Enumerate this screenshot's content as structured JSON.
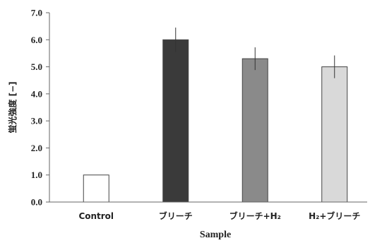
{
  "chart_data": {
    "type": "bar",
    "title": "",
    "xlabel": "Sample",
    "ylabel": "蛍光強度 [−]",
    "categories": [
      "Control",
      "ブリーチ",
      "ブリーチ+H₂",
      "H₂+ブリーチ"
    ],
    "values": [
      1.0,
      6.0,
      5.3,
      5.0
    ],
    "errors": [
      0,
      0.45,
      0.42,
      0.42
    ],
    "colors": [
      "#ffffff",
      "#3a3a3a",
      "#8a8a8a",
      "#d9d9d9"
    ],
    "ylim": [
      0.0,
      7.0
    ],
    "yticks": [
      "0.0",
      "1.0",
      "2.0",
      "3.0",
      "4.0",
      "5.0",
      "6.0",
      "7.0"
    ],
    "grid": false,
    "legend": "none"
  }
}
